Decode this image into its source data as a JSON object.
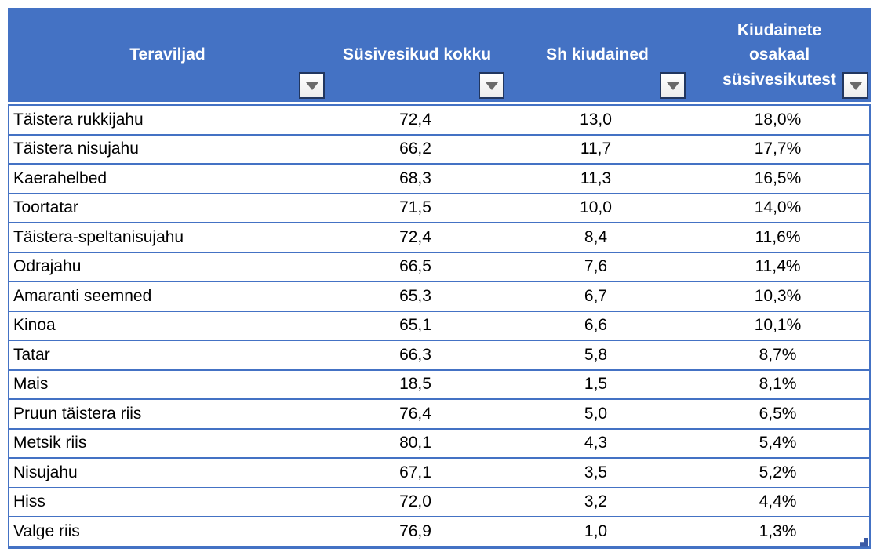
{
  "app": {
    "kind": "spreadsheet-filter-table"
  },
  "colors": {
    "header_bg": "#4472C4",
    "header_text": "#FFFFFF",
    "row_border": "#4472C4",
    "cell_text": "#000000",
    "filter_button_bg": "#F2F2F2",
    "filter_button_border": "#21365F",
    "filter_triangle": "#6A6A6A",
    "resize_handle": "#3B5AA5"
  },
  "icons": {
    "filter_dropdown": "triangle-down"
  },
  "table": {
    "columns": [
      {
        "label": "Teraviljad"
      },
      {
        "label": "Süsivesikud kokku"
      },
      {
        "label": "Sh kiudained"
      },
      {
        "label": "Kiudainete osakaal süsivesikutest"
      }
    ],
    "rows": [
      [
        "Täistera rukkijahu",
        "72,4",
        "13,0",
        "18,0%"
      ],
      [
        "Täistera nisujahu",
        "66,2",
        "11,7",
        "17,7%"
      ],
      [
        "Kaerahelbed",
        "68,3",
        "11,3",
        "16,5%"
      ],
      [
        "Toortatar",
        "71,5",
        "10,0",
        "14,0%"
      ],
      [
        "Täistera-speltanisujahu",
        "72,4",
        "8,4",
        "11,6%"
      ],
      [
        "Odrajahu",
        "66,5",
        "7,6",
        "11,4%"
      ],
      [
        "Amaranti seemned",
        "65,3",
        "6,7",
        "10,3%"
      ],
      [
        "Kinoa",
        "65,1",
        "6,6",
        "10,1%"
      ],
      [
        "Tatar",
        "66,3",
        "5,8",
        "8,7%"
      ],
      [
        "Mais",
        "18,5",
        "1,5",
        "8,1%"
      ],
      [
        "Pruun täistera riis",
        "76,4",
        "5,0",
        "6,5%"
      ],
      [
        "Metsik riis",
        "80,1",
        "4,3",
        "5,4%"
      ],
      [
        "Nisujahu",
        "67,1",
        "3,5",
        "5,2%"
      ],
      [
        "Hiss",
        "72,0",
        "3,2",
        "4,4%"
      ],
      [
        "Valge riis",
        "76,9",
        "1,0",
        "1,3%"
      ]
    ]
  }
}
